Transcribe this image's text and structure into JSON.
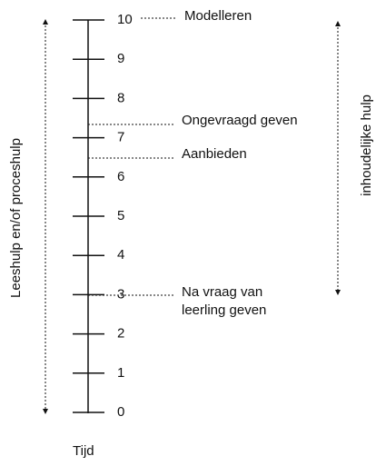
{
  "scale": {
    "ticks": [
      0,
      1,
      2,
      3,
      4,
      5,
      6,
      7,
      8,
      9,
      10
    ],
    "axis_label": "Tijd"
  },
  "annotations": [
    {
      "lines": [
        "Modelleren"
      ]
    },
    {
      "lines": [
        "Ongevraagd geven"
      ]
    },
    {
      "lines": [
        "Aanbieden"
      ]
    },
    {
      "lines": [
        "Na vraag van",
        "leerling geven"
      ]
    }
  ],
  "left_range": {
    "label": "Leeshulp en/of proceshulp"
  },
  "right_range": {
    "label": "inhoudelijke hulp"
  }
}
